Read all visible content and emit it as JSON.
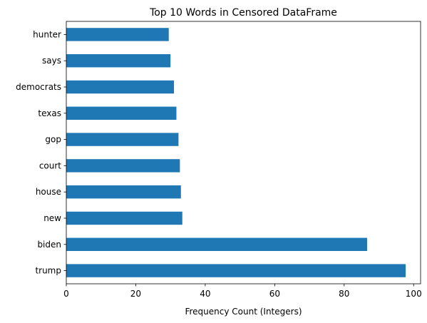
{
  "chart_data": {
    "type": "bar",
    "orientation": "horizontal",
    "title": "Top 10 Words in Censored DataFrame",
    "xlabel": "Frequency Count (Integers)",
    "ylabel": "",
    "categories": [
      "hunter",
      "says",
      "democrats",
      "texas",
      "gop",
      "court",
      "house",
      "new",
      "biden",
      "trump"
    ],
    "values": [
      29.5,
      30,
      31,
      31.7,
      32.3,
      32.7,
      33,
      33.4,
      86.6,
      97.7
    ],
    "xlim": [
      0,
      102
    ],
    "xticks": [
      0,
      20,
      40,
      60,
      80,
      100
    ],
    "xtick_labels": [
      "0",
      "20",
      "40",
      "60",
      "80",
      "100"
    ],
    "grid": false,
    "bar_color": "#1f77b4"
  }
}
